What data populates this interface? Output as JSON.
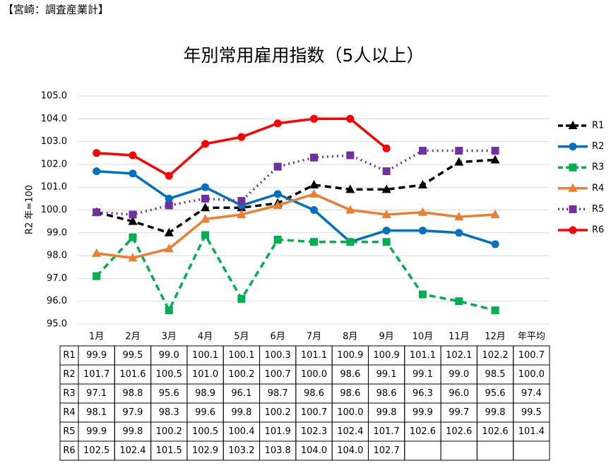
{
  "header": "【宮崎：調査産業計】",
  "chart_data": {
    "type": "line",
    "title": "年別常用雇用指数（5人以上）",
    "ylabel": "R2 年=100",
    "categories": [
      "1月",
      "2月",
      "3月",
      "4月",
      "5月",
      "6月",
      "7月",
      "8月",
      "9月",
      "10月",
      "11月",
      "12月"
    ],
    "summary_label": "年平均",
    "ylim": [
      95,
      105
    ],
    "yticks": [
      {
        "value": 95,
        "label": "95.0"
      },
      {
        "value": 96,
        "label": "96.0"
      },
      {
        "value": 97,
        "label": "97.0"
      },
      {
        "value": 98,
        "label": "98.0"
      },
      {
        "value": 99,
        "label": "99.0"
      },
      {
        "value": 100,
        "label": "100.0"
      },
      {
        "value": 101,
        "label": "101.0"
      },
      {
        "value": 102,
        "label": "102.0"
      },
      {
        "value": 103,
        "label": "103.0"
      },
      {
        "value": 104,
        "label": "104.0"
      },
      {
        "value": 105,
        "label": "105.0"
      }
    ],
    "grid": true,
    "legend": "right",
    "series": [
      {
        "name": "R1",
        "color": "#000000",
        "dash": "dashed",
        "marker": "triangle",
        "values": [
          99.9,
          99.5,
          99.0,
          100.1,
          100.1,
          100.3,
          101.1,
          100.9,
          100.9,
          101.1,
          102.1,
          102.2
        ],
        "value_labels": [
          "99.9",
          "99.5",
          "99.0",
          "100.1",
          "100.1",
          "100.3",
          "101.1",
          "100.9",
          "100.9",
          "101.1",
          "102.1",
          "102.2"
        ],
        "annual": 100.7,
        "annual_label": "100.7"
      },
      {
        "name": "R2",
        "color": "#0070c0",
        "dash": "solid",
        "marker": "circle",
        "values": [
          101.7,
          101.6,
          100.5,
          101.0,
          100.2,
          100.7,
          100.0,
          98.6,
          99.1,
          99.1,
          99.0,
          98.5
        ],
        "value_labels": [
          "101.7",
          "101.6",
          "100.5",
          "101.0",
          "100.2",
          "100.7",
          "100.0",
          "98.6",
          "99.1",
          "99.1",
          "99.0",
          "98.5"
        ],
        "annual": 100.0,
        "annual_label": "100.0"
      },
      {
        "name": "R3",
        "color": "#00b050",
        "dash": "dashed",
        "marker": "square",
        "values": [
          97.1,
          98.8,
          95.6,
          98.9,
          96.1,
          98.7,
          98.6,
          98.6,
          98.6,
          96.3,
          96.0,
          95.6
        ],
        "value_labels": [
          "97.1",
          "98.8",
          "95.6",
          "98.9",
          "96.1",
          "98.7",
          "98.6",
          "98.6",
          "98.6",
          "96.3",
          "96.0",
          "95.6"
        ],
        "annual": 97.4,
        "annual_label": "97.4"
      },
      {
        "name": "R4",
        "color": "#ed7d31",
        "dash": "solid",
        "marker": "triangle",
        "values": [
          98.1,
          97.9,
          98.3,
          99.6,
          99.8,
          100.2,
          100.7,
          100.0,
          99.8,
          99.9,
          99.7,
          99.8
        ],
        "value_labels": [
          "98.1",
          "97.9",
          "98.3",
          "99.6",
          "99.8",
          "100.2",
          "100.7",
          "100.0",
          "99.8",
          "99.9",
          "99.7",
          "99.8"
        ],
        "annual": 99.5,
        "annual_label": "99.5"
      },
      {
        "name": "R5",
        "color": "#7030a0",
        "dash": "dotted",
        "marker": "square",
        "values": [
          99.9,
          99.8,
          100.2,
          100.5,
          100.4,
          101.9,
          102.3,
          102.4,
          101.7,
          102.6,
          102.6,
          102.6
        ],
        "value_labels": [
          "99.9",
          "99.8",
          "100.2",
          "100.5",
          "100.4",
          "101.9",
          "102.3",
          "102.4",
          "101.7",
          "102.6",
          "102.6",
          "102.6"
        ],
        "annual": 101.4,
        "annual_label": "101.4"
      },
      {
        "name": "R6",
        "color": "#ff0000",
        "dash": "solid",
        "marker": "circle",
        "values": [
          102.5,
          102.4,
          101.5,
          102.9,
          103.2,
          103.8,
          104.0,
          104.0,
          102.7,
          null,
          null,
          null
        ],
        "value_labels": [
          "102.5",
          "102.4",
          "101.5",
          "102.9",
          "103.2",
          "103.8",
          "104.0",
          "104.0",
          "102.7",
          null,
          null,
          null
        ]
      }
    ]
  }
}
